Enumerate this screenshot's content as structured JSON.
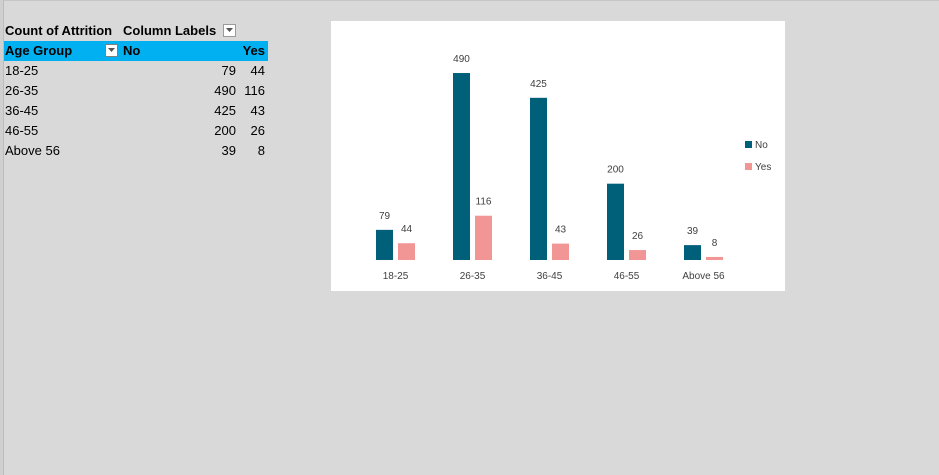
{
  "pivot": {
    "title": "Count of Attrition",
    "column_labels": "Column Labels",
    "row_header": "Age Group",
    "col_no": "No",
    "col_yes": "Yes",
    "rows": [
      {
        "label": "18-25",
        "no": "79",
        "yes": "44"
      },
      {
        "label": "26-35",
        "no": "490",
        "yes": "116"
      },
      {
        "label": "36-45",
        "no": "425",
        "yes": "43"
      },
      {
        "label": "46-55",
        "no": "200",
        "yes": "26"
      },
      {
        "label": "Above 56",
        "no": "39",
        "yes": "8"
      }
    ]
  },
  "chart_data": {
    "type": "bar",
    "categories": [
      "18-25",
      "26-35",
      "36-45",
      "46-55",
      "Above 56"
    ],
    "series": [
      {
        "name": "No",
        "values": [
          79,
          490,
          425,
          200,
          39
        ],
        "color": "#00607a"
      },
      {
        "name": "Yes",
        "values": [
          44,
          116,
          43,
          26,
          8
        ],
        "color": "#f19595"
      }
    ],
    "legend": "right",
    "grid": false
  }
}
